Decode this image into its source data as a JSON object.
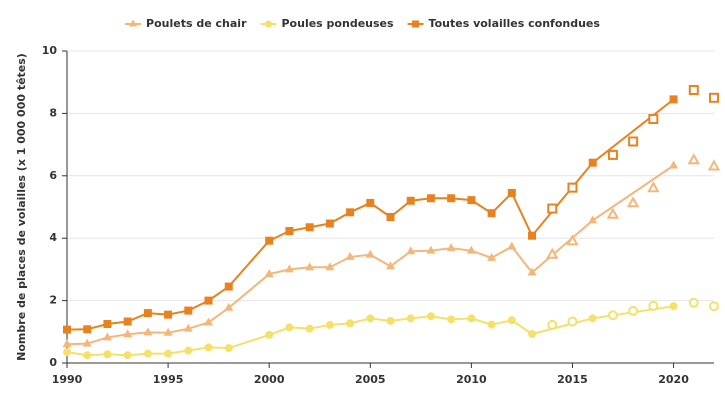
{
  "chart_data": {
    "type": "line",
    "y_label": "Nombre de places de volailles (x 1 000 000 têtes)",
    "x": [
      1990,
      1991,
      1992,
      1993,
      1994,
      1995,
      1996,
      1997,
      1998,
      2000,
      2001,
      2002,
      2003,
      2004,
      2005,
      2006,
      2007,
      2008,
      2009,
      2010,
      2011,
      2012,
      2013,
      2016,
      2020
    ],
    "estimate_x": [
      2014,
      2015,
      2017,
      2018,
      2019,
      2021,
      2022
    ],
    "series": [
      {
        "name": "Poulets de chair",
        "color": "#f5b67a",
        "marker": "triangle",
        "values": [
          0.6,
          0.62,
          0.82,
          0.92,
          0.98,
          0.97,
          1.1,
          1.3,
          1.77,
          2.85,
          3.0,
          3.07,
          3.07,
          3.4,
          3.47,
          3.1,
          3.58,
          3.6,
          3.68,
          3.6,
          3.37,
          3.73,
          2.9,
          4.57,
          6.33
        ],
        "estimate_values": [
          3.47,
          3.9,
          4.75,
          5.12,
          5.6,
          6.5,
          6.3
        ]
      },
      {
        "name": "Poules pondeuses",
        "color": "#f5e16a",
        "marker": "circle",
        "values": [
          0.35,
          0.25,
          0.28,
          0.25,
          0.3,
          0.3,
          0.4,
          0.5,
          0.48,
          0.9,
          1.14,
          1.1,
          1.22,
          1.27,
          1.43,
          1.35,
          1.43,
          1.5,
          1.4,
          1.43,
          1.23,
          1.37,
          0.93,
          1.43,
          1.82
        ],
        "estimate_values": [
          1.22,
          1.33,
          1.53,
          1.67,
          1.83,
          1.93,
          1.82
        ]
      },
      {
        "name": "Toutes volailles confondues",
        "color": "#e8821e",
        "marker": "square",
        "values": [
          1.07,
          1.08,
          1.25,
          1.33,
          1.6,
          1.55,
          1.68,
          2.0,
          2.45,
          3.92,
          4.23,
          4.35,
          4.47,
          4.83,
          5.13,
          4.68,
          5.2,
          5.28,
          5.28,
          5.22,
          4.8,
          5.45,
          4.08,
          6.42,
          8.45
        ],
        "estimate_values": [
          4.95,
          5.62,
          6.67,
          7.1,
          7.82,
          8.75,
          8.5
        ]
      }
    ],
    "xlim": [
      1990,
      2022
    ],
    "xticks": [
      1990,
      1995,
      2000,
      2005,
      2010,
      2015,
      2020
    ],
    "ylim": [
      0,
      10
    ],
    "yticks": [
      0,
      2,
      4,
      6,
      8,
      10
    ],
    "grid": true
  }
}
